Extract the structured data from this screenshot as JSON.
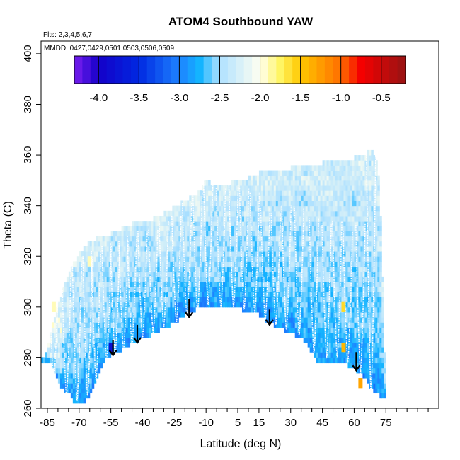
{
  "chart_data": {
    "type": "heatmap",
    "title": "ATOM4 Southbound YAW",
    "annotations": {
      "flights": "Flts: 2,3,4,5,6,7",
      "dates": "MMDD: 0427,0429,0501,0503,0506,0509"
    },
    "xlabel": "Latitude (deg N)",
    "ylabel": "Theta (C)",
    "xlim": [
      -88,
      100
    ],
    "ylim": [
      260,
      405
    ],
    "x_ticks": [
      -85,
      -70,
      -55,
      -40,
      -25,
      -10,
      5,
      15,
      30,
      45,
      60,
      75
    ],
    "x_minor_ticks": [
      -80,
      -75,
      -65,
      -60,
      -50,
      -45,
      -35,
      -30,
      -20,
      -15,
      -5,
      0,
      10,
      20,
      25,
      35,
      40,
      50,
      55,
      65,
      70,
      80,
      85,
      90,
      95
    ],
    "y_ticks": [
      260,
      280,
      300,
      320,
      340,
      360,
      380,
      400
    ],
    "colorbar": {
      "range": [
        -4.3,
        -0.2
      ],
      "ticks": [
        -4.0,
        -3.5,
        -3.0,
        -2.5,
        -2.0,
        -1.5,
        -1.0,
        -0.5
      ],
      "tick_labels": [
        "-4.0",
        "-3.5",
        "-3.0",
        "-2.5",
        "-2.0",
        "-1.5",
        "-1.0",
        "-0.5"
      ]
    },
    "grid": false,
    "upper_envelope": [
      [
        -88,
        279
      ],
      [
        -86,
        281
      ],
      [
        -84,
        287
      ],
      [
        -82,
        295
      ],
      [
        -80,
        301
      ],
      [
        -78,
        306
      ],
      [
        -76,
        310
      ],
      [
        -74,
        315
      ],
      [
        -72,
        318
      ],
      [
        -70,
        321
      ],
      [
        -68,
        323
      ],
      [
        -66,
        325
      ],
      [
        -62,
        327
      ],
      [
        -58,
        328
      ],
      [
        -55,
        329
      ],
      [
        -50,
        331
      ],
      [
        -45,
        333
      ],
      [
        -40,
        334
      ],
      [
        -35,
        335
      ],
      [
        -30,
        337
      ],
      [
        -26,
        339
      ],
      [
        -22,
        341
      ],
      [
        -18,
        343
      ],
      [
        -14,
        345
      ],
      [
        -10,
        350
      ],
      [
        -8,
        349
      ],
      [
        -5,
        347
      ],
      [
        0,
        348
      ],
      [
        5,
        350
      ],
      [
        10,
        351
      ],
      [
        15,
        353
      ],
      [
        20,
        354
      ],
      [
        25,
        354
      ],
      [
        30,
        355
      ],
      [
        35,
        355
      ],
      [
        40,
        356
      ],
      [
        45,
        357
      ],
      [
        50,
        357
      ],
      [
        55,
        358
      ],
      [
        60,
        359
      ],
      [
        65,
        360
      ],
      [
        68,
        362
      ],
      [
        70,
        360
      ],
      [
        72,
        348
      ],
      [
        74,
        300
      ],
      [
        75,
        265
      ]
    ],
    "lower_envelope": [
      [
        -88,
        279
      ],
      [
        -84,
        279
      ],
      [
        -82,
        276
      ],
      [
        -80,
        271
      ],
      [
        -78,
        268
      ],
      [
        -75,
        266
      ],
      [
        -72,
        262
      ],
      [
        -70,
        261
      ],
      [
        -68,
        262
      ],
      [
        -66,
        264
      ],
      [
        -64,
        267
      ],
      [
        -62,
        271
      ],
      [
        -60,
        275
      ],
      [
        -58,
        279
      ],
      [
        -55,
        281
      ],
      [
        -52,
        282
      ],
      [
        -50,
        283
      ],
      [
        -48,
        284
      ],
      [
        -45,
        286
      ],
      [
        -42,
        287
      ],
      [
        -38,
        288
      ],
      [
        -35,
        290
      ],
      [
        -30,
        292
      ],
      [
        -25,
        294
      ],
      [
        -20,
        297
      ],
      [
        -15,
        299
      ],
      [
        -10,
        301
      ],
      [
        -5,
        300
      ],
      [
        0,
        299.5
      ],
      [
        5,
        300
      ],
      [
        10,
        298
      ],
      [
        15,
        297
      ],
      [
        20,
        294
      ],
      [
        25,
        292
      ],
      [
        30,
        290
      ],
      [
        35,
        288
      ],
      [
        38,
        285
      ],
      [
        41,
        281
      ],
      [
        43,
        278
      ],
      [
        50,
        278
      ],
      [
        55,
        278
      ],
      [
        60,
        276
      ],
      [
        65,
        272
      ],
      [
        70,
        266
      ],
      [
        72,
        265
      ],
      [
        74,
        265
      ]
    ],
    "profiles": [
      {
        "lat": -82,
        "top": 312,
        "bottom": 271
      },
      {
        "lat": -76,
        "top": 316,
        "bottom": 265
      },
      {
        "lat": -71,
        "top": 318,
        "bottom": 263
      },
      {
        "lat": -66,
        "top": 320,
        "bottom": 265
      },
      {
        "lat": -62,
        "top": 322,
        "bottom": 271
      },
      {
        "lat": -57,
        "top": 324,
        "bottom": 279
      },
      {
        "lat": -53,
        "top": 325,
        "bottom": 281
      },
      {
        "lat": -49,
        "top": 326,
        "bottom": 283
      },
      {
        "lat": -45,
        "top": 328,
        "bottom": 285
      },
      {
        "lat": -40,
        "top": 330,
        "bottom": 288
      },
      {
        "lat": -35,
        "top": 331,
        "bottom": 290
      },
      {
        "lat": -30,
        "top": 334,
        "bottom": 292
      },
      {
        "lat": -24,
        "top": 336,
        "bottom": 294
      },
      {
        "lat": -19,
        "top": 341,
        "bottom": 296
      },
      {
        "lat": -14,
        "top": 345,
        "bottom": 298
      },
      {
        "lat": -9,
        "top": 350,
        "bottom": 301
      },
      {
        "lat": -3,
        "top": 347,
        "bottom": 300
      },
      {
        "lat": 3,
        "top": 348,
        "bottom": 300
      },
      {
        "lat": 8,
        "top": 347,
        "bottom": 299
      },
      {
        "lat": 13,
        "top": 345,
        "bottom": 298
      },
      {
        "lat": 18,
        "top": 339,
        "bottom": 295
      },
      {
        "lat": 23,
        "top": 337,
        "bottom": 293
      },
      {
        "lat": 28,
        "top": 340,
        "bottom": 291
      },
      {
        "lat": 34,
        "top": 339,
        "bottom": 289
      },
      {
        "lat": 41,
        "top": 335,
        "bottom": 282
      },
      {
        "lat": 47,
        "top": 333,
        "bottom": 280
      },
      {
        "lat": 52,
        "top": 334,
        "bottom": 280
      },
      {
        "lat": 57,
        "top": 330,
        "bottom": 278
      },
      {
        "lat": 63,
        "top": 333,
        "bottom": 274
      },
      {
        "lat": 68,
        "top": 362,
        "bottom": 266
      }
    ],
    "arrows": [
      {
        "lat": -54,
        "tail": 287,
        "head": 281
      },
      {
        "lat": -42.5,
        "tail": 293,
        "head": 286
      },
      {
        "lat": -18,
        "tail": 303,
        "head": 296
      },
      {
        "lat": 20,
        "tail": 299,
        "head": 293
      },
      {
        "lat": 61,
        "tail": 282,
        "head": 275
      }
    ],
    "highlights": [
      {
        "lat": -55,
        "theta": 284,
        "value": -3.8
      },
      {
        "lat": 55,
        "theta": 284,
        "value": -1.4
      },
      {
        "lat": 55,
        "theta": 300,
        "value": -1.6
      },
      {
        "lat": 63,
        "theta": 270,
        "value": -1.3
      },
      {
        "lat": -82,
        "theta": 300,
        "value": -1.9
      },
      {
        "lat": -65,
        "theta": 318,
        "value": -1.9
      }
    ]
  }
}
